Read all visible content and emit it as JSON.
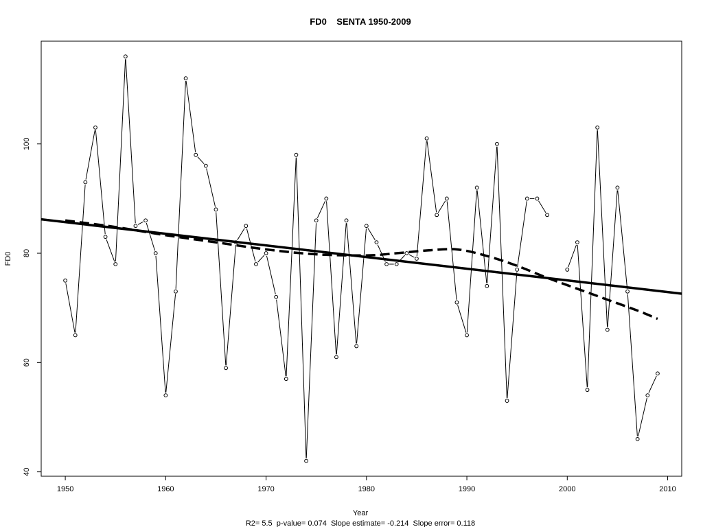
{
  "chart_data": {
    "type": "line",
    "title": "FD0    SENTA 1950-2009",
    "xlabel": "Year",
    "ylabel": "FD0",
    "footnote": "R2= 5.5  p-value= 0.074  Slope estimate= -0.214  Slope error= 0.118",
    "xlim": [
      1947.6,
      2011.4
    ],
    "ylim": [
      39.2,
      118.8
    ],
    "x_ticks": [
      1950,
      1960,
      1970,
      1980,
      1990,
      2000,
      2010
    ],
    "y_ticks": [
      40,
      60,
      80,
      100
    ],
    "grid": false,
    "series": [
      {
        "style": "points-and-line",
        "x": [
          1950,
          1951,
          1952,
          1953,
          1954,
          1955,
          1956,
          1957,
          1958,
          1959,
          1960,
          1961,
          1962,
          1963,
          1964,
          1965,
          1966,
          1967,
          1968,
          1969,
          1970,
          1971,
          1972,
          1973,
          1974,
          1975,
          1976,
          1977,
          1978,
          1979,
          1980,
          1981,
          1982,
          1983,
          1984,
          1985,
          1986,
          1987,
          1988,
          1989,
          1990,
          1991,
          1992,
          1993,
          1994,
          1995,
          1996,
          1997,
          1998,
          1999,
          2000,
          2001,
          2002,
          2003,
          2004,
          2005,
          2006,
          2007,
          2008,
          2009
        ],
        "values": [
          75,
          65,
          93,
          103,
          83,
          78,
          116,
          85,
          86,
          80,
          54,
          73,
          112,
          98,
          96,
          88,
          59,
          82,
          85,
          78,
          80,
          72,
          57,
          98,
          42,
          86,
          90,
          61,
          86,
          63,
          85,
          82,
          78,
          78,
          80,
          79,
          101,
          87,
          90,
          71,
          65,
          92,
          74,
          100,
          53,
          77,
          90,
          90,
          87,
          null,
          77,
          82,
          55,
          103,
          66,
          92,
          73,
          46,
          54,
          58
        ]
      },
      {
        "style": "solid-trend",
        "x": [
          1947.6,
          2011.4
        ],
        "values": [
          86.2,
          72.6
        ]
      },
      {
        "style": "dashed-smooth",
        "x": [
          1950,
          1955,
          1960,
          1965,
          1970,
          1975,
          1980,
          1983,
          1986,
          1989,
          1992,
          1995,
          1998,
          2001,
          2004,
          2007,
          2009
        ],
        "values": [
          86,
          84.8,
          83.3,
          82,
          80.7,
          79.8,
          79.6,
          80,
          80.5,
          80.7,
          79.5,
          77.7,
          75.5,
          73.5,
          71.5,
          69.5,
          68
        ]
      }
    ]
  }
}
